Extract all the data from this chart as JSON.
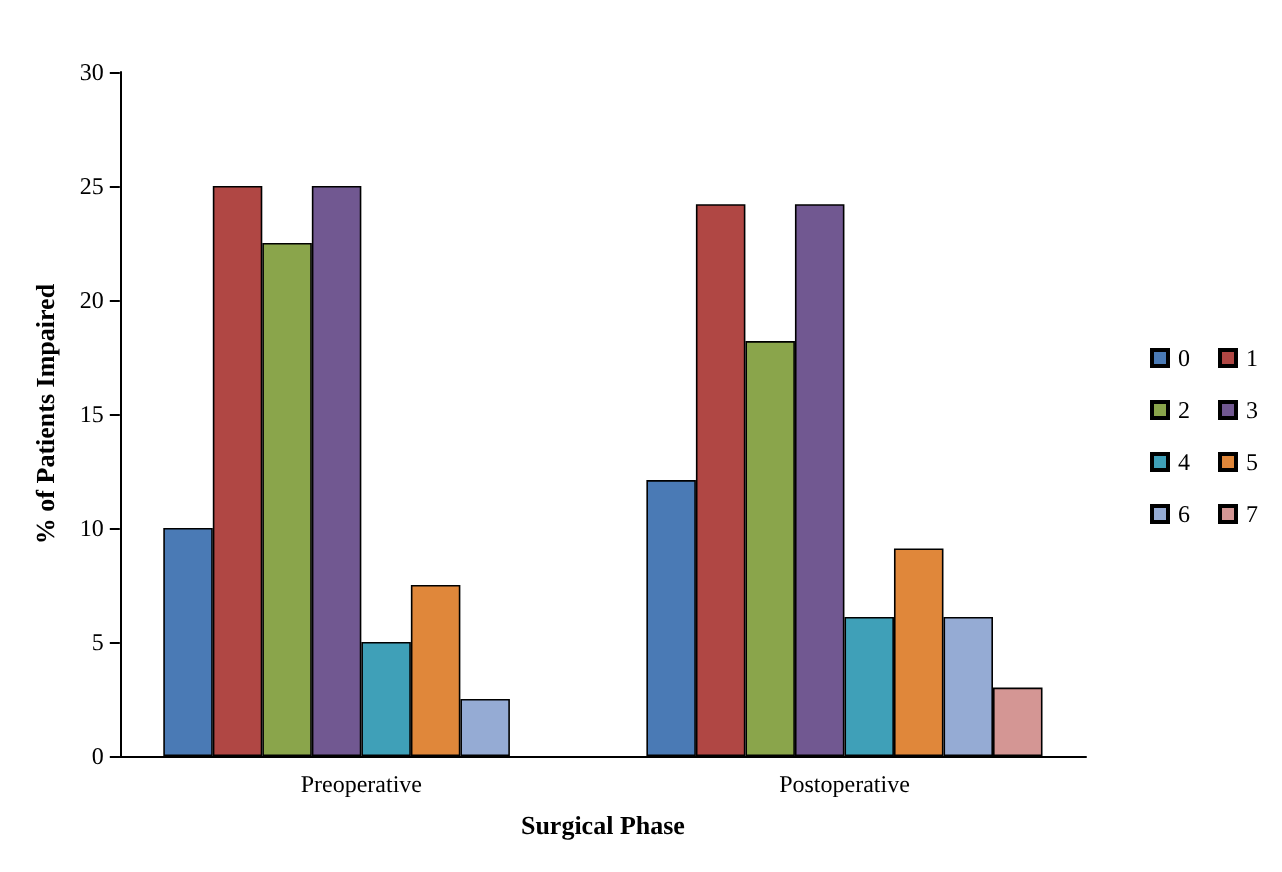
{
  "chart_data": {
    "type": "bar",
    "xlabel": "Surgical Phase",
    "ylabel": "% of Patients Impaired",
    "categories": [
      "Preoperative",
      "Postoperative"
    ],
    "series": [
      {
        "name": "0",
        "color": "#4a7ab5",
        "values": [
          10,
          12.1
        ]
      },
      {
        "name": "1",
        "color": "#b04744",
        "values": [
          25,
          24.2
        ]
      },
      {
        "name": "2",
        "color": "#8aa54b",
        "values": [
          22.5,
          18.2
        ]
      },
      {
        "name": "3",
        "color": "#715891",
        "values": [
          25,
          24.2
        ]
      },
      {
        "name": "4",
        "color": "#3fa0b8",
        "values": [
          5,
          6.1
        ]
      },
      {
        "name": "5",
        "color": "#e0873a",
        "values": [
          7.5,
          9.1
        ]
      },
      {
        "name": "6",
        "color": "#95abd4",
        "values": [
          2.5,
          6.1
        ]
      },
      {
        "name": "7",
        "color": "#d49694",
        "values": [
          null,
          3
        ]
      }
    ],
    "ylim": [
      0,
      30
    ],
    "yticks": [
      0,
      5,
      10,
      15,
      20,
      25,
      30
    ],
    "grid": false,
    "legend": "right"
  }
}
